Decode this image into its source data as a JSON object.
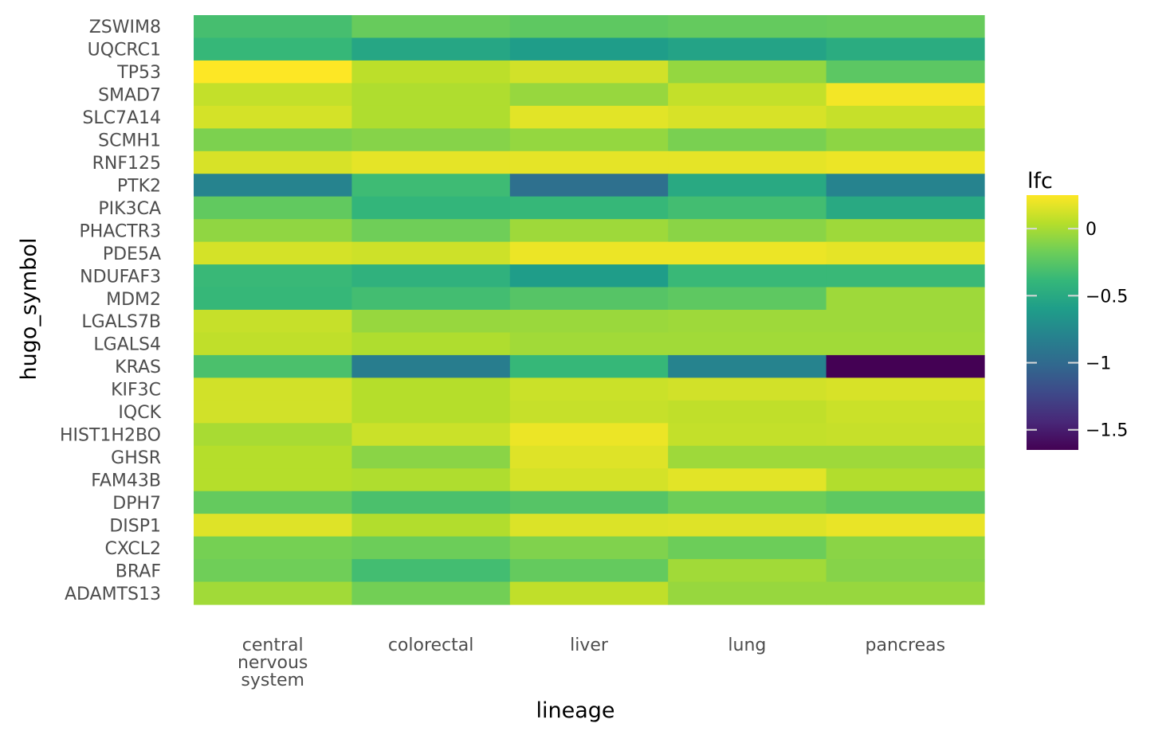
{
  "chart_data": {
    "type": "heatmap",
    "title": "",
    "xlabel": "lineage",
    "ylabel": "hugo_symbol",
    "x": [
      [
        "central",
        "nervous",
        "system"
      ],
      [
        "colorectal"
      ],
      [
        "liver"
      ],
      [
        "lung"
      ],
      [
        "pancreas"
      ]
    ],
    "y": [
      "ZSWIM8",
      "UQCRC1",
      "TP53",
      "SMAD7",
      "SLC7A14",
      "SCMH1",
      "RNF125",
      "PTK2",
      "PIK3CA",
      "PHACTR3",
      "PDE5A",
      "NDUFAF3",
      "MDM2",
      "LGALS7B",
      "LGALS4",
      "KRAS",
      "KIF3C",
      "IQCK",
      "HIST1H2BO",
      "GHSR",
      "FAM43B",
      "DPH7",
      "DISP1",
      "CXCL2",
      "BRAF",
      "ADAMTS13"
    ],
    "values": [
      [
        -0.32,
        -0.2,
        -0.23,
        -0.21,
        -0.2
      ],
      [
        -0.38,
        -0.53,
        -0.6,
        -0.55,
        -0.48
      ],
      [
        0.25,
        0.06,
        0.12,
        -0.06,
        -0.24
      ],
      [
        0.08,
        0.02,
        -0.05,
        0.08,
        0.22
      ],
      [
        0.13,
        0.02,
        0.17,
        0.14,
        0.09
      ],
      [
        -0.13,
        -0.1,
        -0.06,
        -0.14,
        -0.08
      ],
      [
        0.14,
        0.18,
        0.18,
        0.18,
        0.2
      ],
      [
        -0.8,
        -0.35,
        -0.95,
        -0.5,
        -0.8
      ],
      [
        -0.22,
        -0.4,
        -0.38,
        -0.33,
        -0.5
      ],
      [
        -0.07,
        -0.17,
        -0.03,
        -0.09,
        -0.03
      ],
      [
        0.13,
        0.11,
        0.2,
        0.2,
        0.18
      ],
      [
        -0.37,
        -0.43,
        -0.6,
        -0.37,
        -0.37
      ],
      [
        -0.38,
        -0.33,
        -0.26,
        -0.23,
        -0.03
      ],
      [
        0.09,
        -0.05,
        -0.04,
        -0.03,
        -0.03
      ],
      [
        0.07,
        0.02,
        -0.02,
        -0.02,
        -0.02
      ],
      [
        -0.3,
        -0.85,
        -0.38,
        -0.8,
        -1.65
      ],
      [
        0.12,
        0.04,
        0.1,
        0.12,
        0.14
      ],
      [
        0.12,
        0.04,
        0.09,
        0.07,
        0.1
      ],
      [
        0.0,
        0.1,
        0.2,
        0.08,
        0.09
      ],
      [
        0.04,
        -0.09,
        0.16,
        -0.03,
        -0.03
      ],
      [
        0.04,
        0.02,
        0.13,
        0.17,
        0.03
      ],
      [
        -0.21,
        -0.3,
        -0.26,
        -0.18,
        -0.23
      ],
      [
        0.16,
        0.03,
        0.15,
        0.16,
        0.19
      ],
      [
        -0.15,
        -0.18,
        -0.12,
        -0.18,
        -0.09
      ],
      [
        -0.17,
        -0.33,
        -0.21,
        -0.02,
        -0.1
      ],
      [
        -0.02,
        -0.16,
        0.07,
        -0.05,
        -0.05
      ]
    ],
    "color_scale": {
      "name": "viridis",
      "min": -1.65,
      "max": 0.25,
      "stops": [
        "#440154",
        "#482878",
        "#3e4989",
        "#31688e",
        "#26828e",
        "#1f9e89",
        "#35b779",
        "#6ece58",
        "#b5de2b",
        "#fde725"
      ]
    },
    "legend": {
      "title": "lfc",
      "placement": "right",
      "ticks": [
        0,
        -0.5,
        -1,
        -1.5
      ],
      "tick_labels": [
        "0",
        "−0.5",
        "−1",
        "−1.5"
      ]
    },
    "grid": false
  }
}
